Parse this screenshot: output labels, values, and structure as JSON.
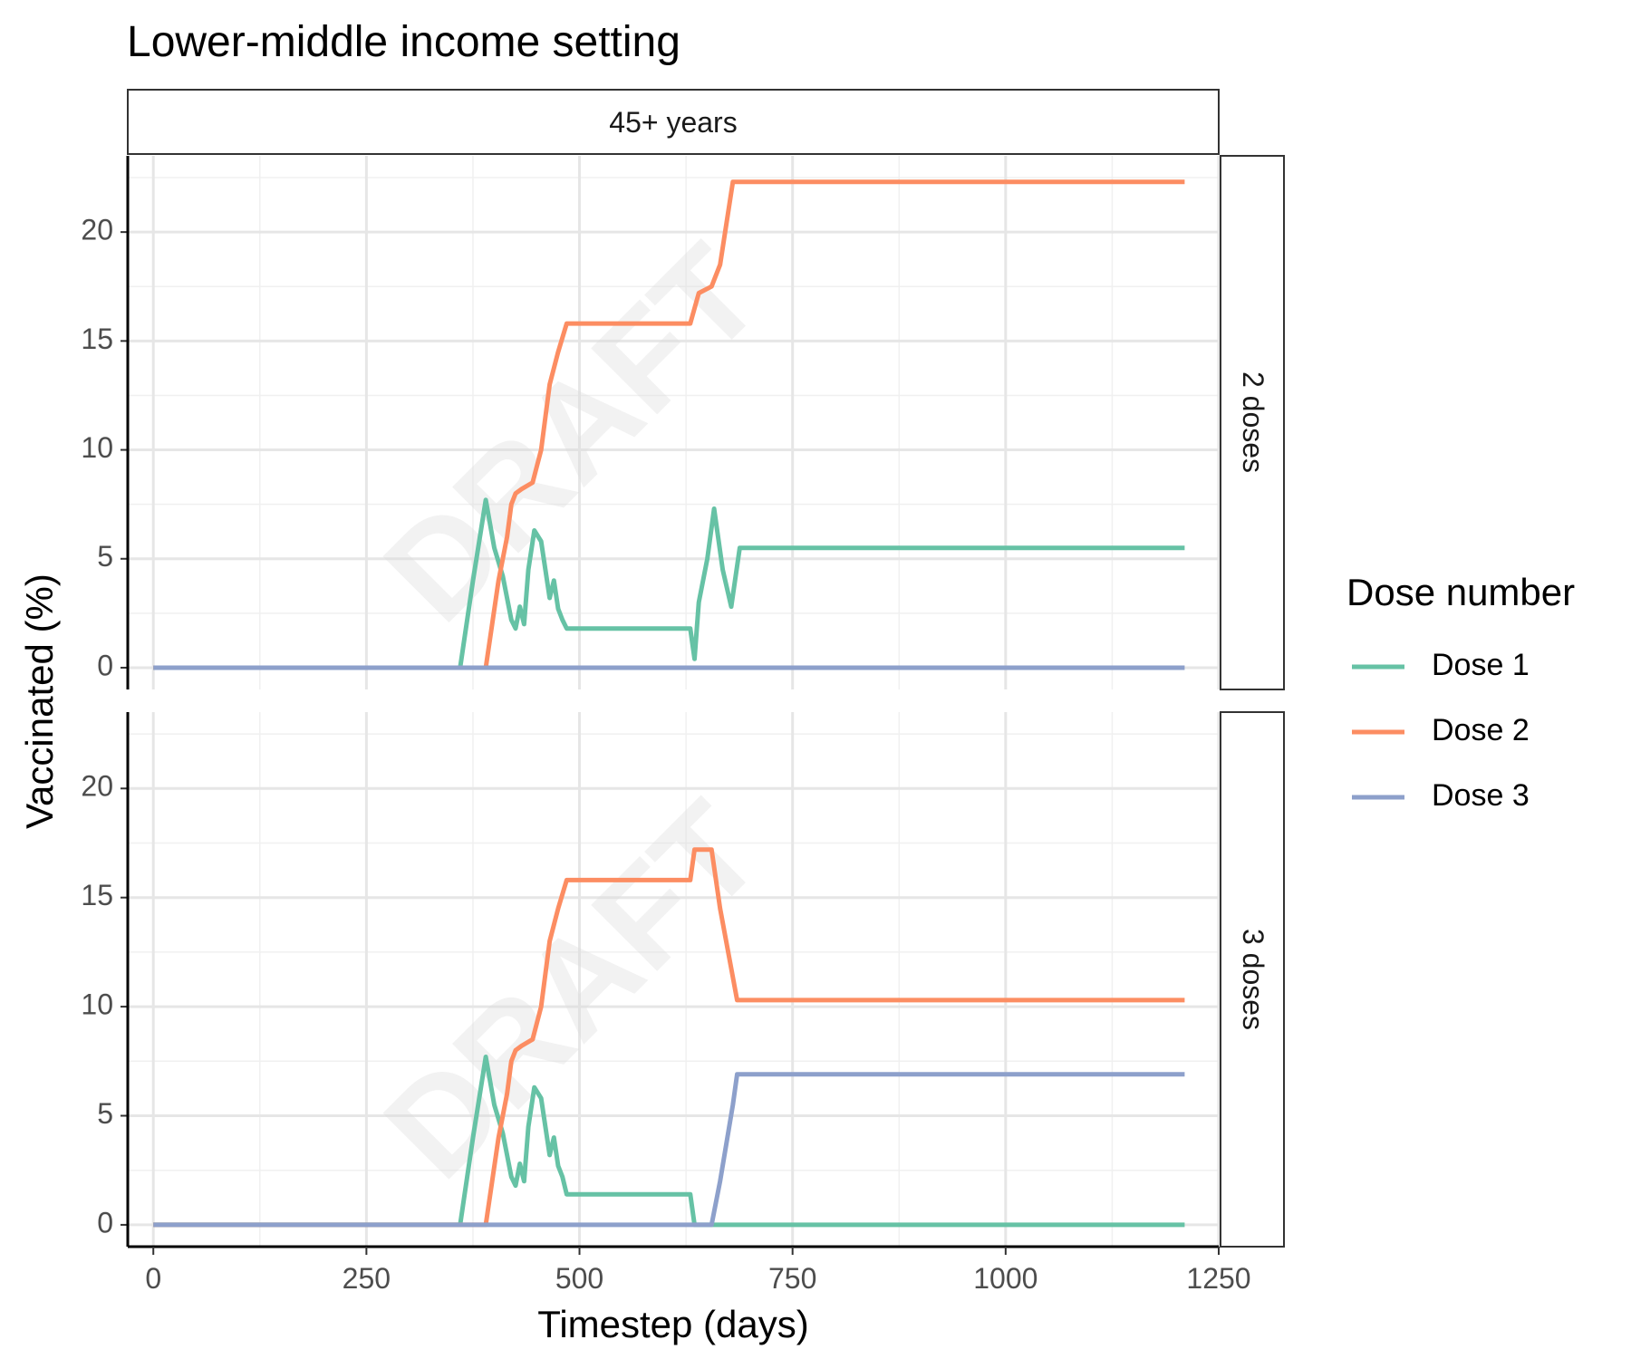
{
  "chart_data": {
    "type": "line",
    "title": "Lower-middle income setting",
    "xlabel": "Timestep (days)",
    "ylabel": "Vaccinated (%)",
    "column_facet": "45+ years",
    "xlim": [
      -30,
      1250
    ],
    "ylim": [
      -1.0,
      23.5
    ],
    "x_ticks": [
      0,
      250,
      500,
      750,
      1000,
      1250
    ],
    "y_ticks": [
      0,
      5,
      10,
      15,
      20
    ],
    "grid": true,
    "watermark": "DRAFT",
    "legend": {
      "title": "Dose number",
      "placement": "right",
      "entries": [
        "Dose 1",
        "Dose 2",
        "Dose 3"
      ]
    },
    "colors": {
      "Dose 1": "#66c2a5",
      "Dose 2": "#fc8d62",
      "Dose 3": "#8da0cb"
    },
    "panels": [
      {
        "strip": "2 doses",
        "series": [
          {
            "name": "Dose 1",
            "x": [
              0,
              360,
              375,
              390,
              400,
              410,
              420,
              425,
              430,
              435,
              440,
              447,
              455,
              460,
              465,
              470,
              475,
              480,
              485,
              630,
              635,
              640,
              650,
              658,
              668,
              678,
              688,
              1210
            ],
            "y": [
              0,
              0,
              4,
              7.7,
              5.5,
              4.2,
              2.2,
              1.8,
              2.8,
              2.0,
              4.5,
              6.3,
              5.8,
              4.5,
              3.2,
              4.0,
              2.7,
              2.2,
              1.8,
              1.8,
              0.4,
              3.0,
              5.0,
              7.3,
              4.5,
              2.8,
              5.5,
              5.5
            ]
          },
          {
            "name": "Dose 2",
            "x": [
              0,
              390,
              405,
              415,
              420,
              425,
              432,
              445,
              455,
              465,
              475,
              485,
              630,
              640,
              655,
              665,
              680,
              1210
            ],
            "y": [
              0,
              0,
              4.0,
              6.0,
              7.5,
              8.0,
              8.2,
              8.5,
              10.0,
              13.0,
              14.5,
              15.8,
              15.8,
              17.2,
              17.5,
              18.5,
              22.3,
              22.3
            ]
          },
          {
            "name": "Dose 3",
            "x": [
              0,
              1210
            ],
            "y": [
              0,
              0
            ]
          }
        ]
      },
      {
        "strip": "3 doses",
        "series": [
          {
            "name": "Dose 1",
            "x": [
              0,
              360,
              375,
              390,
              400,
              410,
              420,
              425,
              430,
              435,
              440,
              447,
              455,
              460,
              465,
              470,
              475,
              480,
              485,
              630,
              635,
              1210
            ],
            "y": [
              0,
              0,
              4,
              7.7,
              5.5,
              4.2,
              2.2,
              1.8,
              2.8,
              2.0,
              4.5,
              6.3,
              5.8,
              4.5,
              3.2,
              4.0,
              2.7,
              2.2,
              1.4,
              1.4,
              0,
              0
            ]
          },
          {
            "name": "Dose 2",
            "x": [
              0,
              390,
              405,
              415,
              420,
              425,
              432,
              445,
              455,
              465,
              475,
              485,
              630,
              635,
              655,
              665,
              685,
              1210
            ],
            "y": [
              0,
              0,
              4.0,
              6.0,
              7.5,
              8.0,
              8.2,
              8.5,
              10.0,
              13.0,
              14.5,
              15.8,
              15.8,
              17.2,
              17.2,
              14.5,
              10.3,
              10.3
            ]
          },
          {
            "name": "Dose 3",
            "x": [
              0,
              655,
              665,
              680,
              685,
              1210
            ],
            "y": [
              0,
              0,
              2.0,
              5.5,
              6.9,
              6.9
            ]
          }
        ]
      }
    ]
  }
}
